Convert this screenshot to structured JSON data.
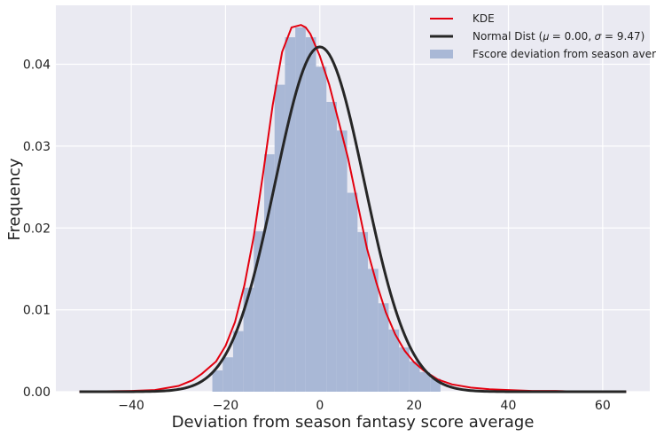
{
  "chart_data": {
    "type": "histogram",
    "xlabel": "Deviation from season fantasy score average",
    "ylabel": "Frequency",
    "xlim": [
      -56,
      70
    ],
    "ylim": [
      0,
      0.0472
    ],
    "x_ticks": [
      -40,
      -20,
      0,
      20,
      40,
      60
    ],
    "x_tick_labels": [
      "−40",
      "−20",
      "0",
      "20",
      "40",
      "60"
    ],
    "y_ticks": [
      0,
      0.01,
      0.02,
      0.03,
      0.04
    ],
    "y_tick_labels": [
      "0.00",
      "0.01",
      "0.02",
      "0.03",
      "0.04"
    ],
    "grid": true,
    "legend_position": "top-right",
    "histogram": {
      "name": "Fscore deviation from season average",
      "color": "#a9b8d6",
      "bin_width": 2.2,
      "bins": [
        {
          "x0": -22.8,
          "value": 0.0026
        },
        {
          "x0": -20.6,
          "value": 0.0042
        },
        {
          "x0": -18.4,
          "value": 0.0074
        },
        {
          "x0": -16.2,
          "value": 0.0127
        },
        {
          "x0": -14.0,
          "value": 0.0196
        },
        {
          "x0": -11.8,
          "value": 0.029
        },
        {
          "x0": -9.6,
          "value": 0.0375
        },
        {
          "x0": -7.4,
          "value": 0.0433
        },
        {
          "x0": -5.2,
          "value": 0.0445
        },
        {
          "x0": -3.0,
          "value": 0.0433
        },
        {
          "x0": -0.8,
          "value": 0.0397
        },
        {
          "x0": 1.4,
          "value": 0.0354
        },
        {
          "x0": 3.6,
          "value": 0.0319
        },
        {
          "x0": 5.8,
          "value": 0.0243
        },
        {
          "x0": 8.0,
          "value": 0.0195
        },
        {
          "x0": 10.2,
          "value": 0.015
        },
        {
          "x0": 12.4,
          "value": 0.0108
        },
        {
          "x0": 14.6,
          "value": 0.0076
        },
        {
          "x0": 16.8,
          "value": 0.0054
        },
        {
          "x0": 19.0,
          "value": 0.0037
        },
        {
          "x0": 21.2,
          "value": 0.0024
        },
        {
          "x0": 23.4,
          "value": 0.0016
        }
      ]
    },
    "series": [
      {
        "name": "KDE",
        "color": "#e3000f",
        "x": [
          -51,
          -40,
          -35,
          -30,
          -27,
          -25,
          -22,
          -20,
          -18,
          -16,
          -14,
          -12,
          -10,
          -8,
          -6,
          -4,
          -3,
          -2,
          0,
          2,
          4,
          6,
          8,
          10,
          12,
          14,
          16,
          18,
          20,
          22,
          25,
          28,
          32,
          36,
          40,
          45,
          50,
          55,
          60,
          65
        ],
        "y": [
          0,
          0.0001,
          0.0002,
          0.0007,
          0.0014,
          0.0022,
          0.0037,
          0.0056,
          0.0085,
          0.013,
          0.019,
          0.0268,
          0.035,
          0.0415,
          0.0445,
          0.0448,
          0.0445,
          0.0437,
          0.041,
          0.0375,
          0.033,
          0.0285,
          0.023,
          0.0175,
          0.0133,
          0.0097,
          0.007,
          0.005,
          0.0036,
          0.0026,
          0.0015,
          0.0009,
          0.0005,
          0.0003,
          0.0002,
          0.0001,
          0.0001,
          0,
          0,
          0
        ]
      },
      {
        "name": "Normal Dist ($\\mu=$ 0.00, $\\sigma=$9.47)",
        "legend_label": "Normal Dist (𝜇 = 0.00, 𝜎 = 9.47)",
        "color": "#262626",
        "distribution": {
          "mu": 0.0,
          "sigma": 9.47
        },
        "x_range": [
          -51,
          65
        ]
      }
    ]
  }
}
